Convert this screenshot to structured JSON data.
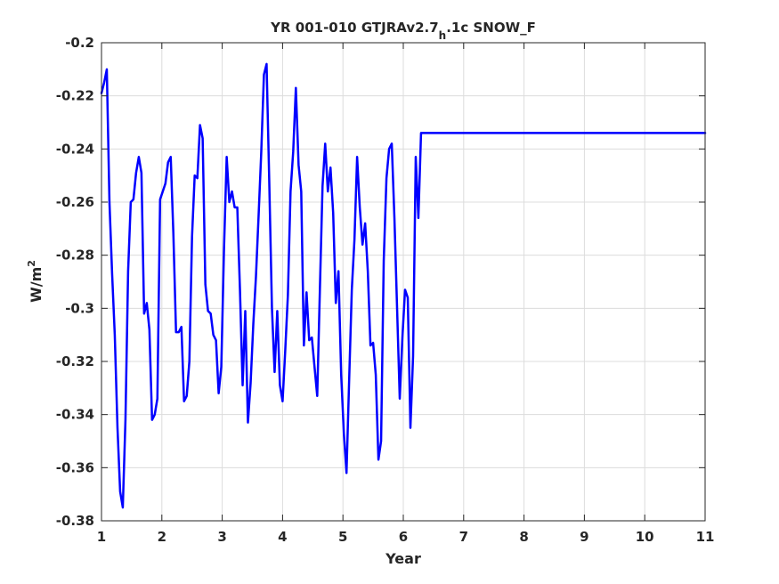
{
  "chart_data": {
    "type": "line",
    "title": {
      "main": "YR 001-010 GTJRAv2.7",
      "subscript": "h",
      "rest": ".1c SNOW_F"
    },
    "xlabel": "Year",
    "ylabel": {
      "base": "W/m",
      "superscript": "2"
    },
    "xlim": [
      1,
      11
    ],
    "ylim": [
      -0.38,
      -0.2
    ],
    "xticks": [
      1,
      2,
      3,
      4,
      5,
      6,
      7,
      8,
      9,
      10,
      11
    ],
    "xtick_labels": [
      "1",
      "2",
      "3",
      "4",
      "5",
      "6",
      "7",
      "8",
      "9",
      "10",
      "11"
    ],
    "yticks": [
      -0.38,
      -0.36,
      -0.34,
      -0.32,
      -0.3,
      -0.28,
      -0.26,
      -0.24,
      -0.22,
      -0.2
    ],
    "ytick_labels": [
      "-0.38",
      "-0.36",
      "-0.34",
      "-0.32",
      "-0.3",
      "-0.28",
      "-0.26",
      "-0.24",
      "-0.22",
      "-0.2"
    ],
    "grid": true,
    "series": [
      {
        "color": "#0000ff",
        "x": [
          1.0,
          1.044,
          1.088,
          1.132,
          1.176,
          1.22,
          1.265,
          1.309,
          1.353,
          1.397,
          1.441,
          1.485,
          1.529,
          1.573,
          1.618,
          1.662,
          1.706,
          1.75,
          1.794,
          1.838,
          1.882,
          1.926,
          1.971,
          2.015,
          2.059,
          2.103,
          2.147,
          2.191,
          2.235,
          2.279,
          2.324,
          2.368,
          2.412,
          2.456,
          2.5,
          2.544,
          2.588,
          2.632,
          2.676,
          2.721,
          2.765,
          2.809,
          2.853,
          2.897,
          2.941,
          2.985,
          3.029,
          3.074,
          3.118,
          3.162,
          3.206,
          3.25,
          3.294,
          3.338,
          3.382,
          3.426,
          3.471,
          3.515,
          3.559,
          3.603,
          3.647,
          3.691,
          3.735,
          3.779,
          3.824,
          3.868,
          3.912,
          3.956,
          4.0,
          4.044,
          4.088,
          4.132,
          4.176,
          4.22,
          4.265,
          4.309,
          4.353,
          4.397,
          4.441,
          4.485,
          4.529,
          4.574,
          4.618,
          4.662,
          4.706,
          4.75,
          4.794,
          4.838,
          4.882,
          4.926,
          4.971,
          5.015,
          5.059,
          5.103,
          5.147,
          5.191,
          5.235,
          5.279,
          5.324,
          5.368,
          5.412,
          5.456,
          5.5,
          5.544,
          5.588,
          5.632,
          5.676,
          5.721,
          5.765,
          5.809,
          5.853,
          5.897,
          5.941,
          5.985,
          6.029,
          6.074,
          6.118,
          6.162,
          6.206,
          6.25,
          6.294,
          6.338,
          6.382,
          6.426,
          6.471,
          6.515,
          6.559,
          6.603,
          6.647,
          6.691,
          6.735,
          6.779,
          6.824,
          6.868,
          6.912,
          6.956,
          7.0,
          7.044,
          7.088,
          7.132,
          7.176,
          7.22,
          7.265,
          7.309,
          7.353,
          7.397,
          7.441,
          7.485,
          7.529,
          7.574,
          7.618,
          7.662,
          7.706,
          7.75,
          7.794,
          7.838,
          7.882,
          7.926,
          7.971,
          8.015,
          8.059,
          8.103,
          8.147,
          8.191,
          8.235,
          8.279,
          8.324,
          8.368,
          8.412,
          8.456,
          8.5,
          8.544,
          8.588,
          8.632,
          8.676,
          8.721,
          8.765,
          8.809,
          8.853,
          8.897,
          8.941,
          8.985,
          9.029,
          9.074,
          9.118,
          9.162,
          9.206,
          9.25,
          9.294,
          9.338,
          9.382,
          9.426,
          9.471,
          9.515,
          9.559,
          9.603,
          9.647,
          9.691,
          9.735,
          9.779,
          9.824,
          9.868,
          9.912,
          9.956,
          10.0,
          10.044,
          10.088,
          10.132,
          10.176,
          10.22,
          10.265,
          10.309,
          10.353,
          10.397,
          10.441,
          10.485,
          10.529,
          10.574,
          10.618,
          10.662,
          10.706,
          10.75,
          10.794,
          10.838,
          10.882,
          10.926,
          10.971,
          11.0
        ],
        "values": [
          -0.219,
          -0.215,
          -0.21,
          -0.26,
          -0.287,
          -0.31,
          -0.345,
          -0.369,
          -0.375,
          -0.342,
          -0.286,
          -0.26,
          -0.259,
          -0.249,
          -0.243,
          -0.249,
          -0.302,
          -0.298,
          -0.308,
          -0.342,
          -0.34,
          -0.334,
          -0.259,
          -0.256,
          -0.253,
          -0.245,
          -0.243,
          -0.272,
          -0.309,
          -0.309,
          -0.307,
          -0.335,
          -0.333,
          -0.32,
          -0.273,
          -0.25,
          -0.251,
          -0.231,
          -0.236,
          -0.291,
          -0.301,
          -0.302,
          -0.31,
          -0.312,
          -0.332,
          -0.322,
          -0.278,
          -0.243,
          -0.26,
          -0.256,
          -0.262,
          -0.262,
          -0.293,
          -0.329,
          -0.301,
          -0.343,
          -0.328,
          -0.306,
          -0.288,
          -0.265,
          -0.241,
          -0.212,
          -0.208,
          -0.252,
          -0.3,
          -0.324,
          -0.301,
          -0.329,
          -0.335,
          -0.316,
          -0.295,
          -0.256,
          -0.241,
          -0.217,
          -0.246,
          -0.256,
          -0.314,
          -0.294,
          -0.312,
          -0.311,
          -0.322,
          -0.333,
          -0.293,
          -0.254,
          -0.238,
          -0.256,
          -0.247,
          -0.264,
          -0.298,
          -0.286,
          -0.325,
          -0.347,
          -0.362,
          -0.327,
          -0.293,
          -0.274,
          -0.243,
          -0.262,
          -0.276,
          -0.268,
          -0.286,
          -0.314,
          -0.313,
          -0.325,
          -0.357,
          -0.35,
          -0.282,
          -0.251,
          -0.24,
          -0.238,
          -0.266,
          -0.3,
          -0.334,
          -0.311,
          -0.293,
          -0.296,
          -0.345,
          -0.318,
          -0.243,
          -0.266,
          -0.234,
          -0.234,
          -0.234,
          -0.234,
          -0.234,
          -0.234,
          -0.234,
          -0.234,
          -0.234,
          -0.234,
          -0.234,
          -0.234,
          -0.234,
          -0.234,
          -0.234,
          -0.234,
          -0.234,
          -0.234,
          -0.234,
          -0.234,
          -0.234,
          -0.234,
          -0.234,
          -0.234,
          -0.234,
          -0.234,
          -0.234,
          -0.234,
          -0.234,
          -0.234,
          -0.234,
          -0.234,
          -0.234,
          -0.234,
          -0.234,
          -0.234,
          -0.234,
          -0.234,
          -0.234,
          -0.234,
          -0.234,
          -0.234,
          -0.234,
          -0.234,
          -0.234,
          -0.234,
          -0.234,
          -0.234,
          -0.234,
          -0.234,
          -0.234,
          -0.234,
          -0.234,
          -0.234,
          -0.234,
          -0.234,
          -0.234,
          -0.234,
          -0.234,
          -0.234,
          -0.234,
          -0.234,
          -0.234,
          -0.234,
          -0.234,
          -0.234,
          -0.234,
          -0.234,
          -0.234,
          -0.234,
          -0.234,
          -0.234,
          -0.234,
          -0.234,
          -0.234,
          -0.234,
          -0.234,
          -0.234,
          -0.234,
          -0.234,
          -0.234,
          -0.234,
          -0.234,
          -0.234,
          -0.234,
          -0.234,
          -0.234,
          -0.234,
          -0.234,
          -0.234,
          -0.234,
          -0.234,
          -0.234,
          -0.234,
          -0.234,
          -0.234,
          -0.234,
          -0.234,
          -0.234,
          -0.234,
          -0.234,
          -0.234,
          -0.234,
          -0.234,
          -0.234,
          -0.234,
          -0.234,
          -0.234
        ]
      }
    ]
  }
}
